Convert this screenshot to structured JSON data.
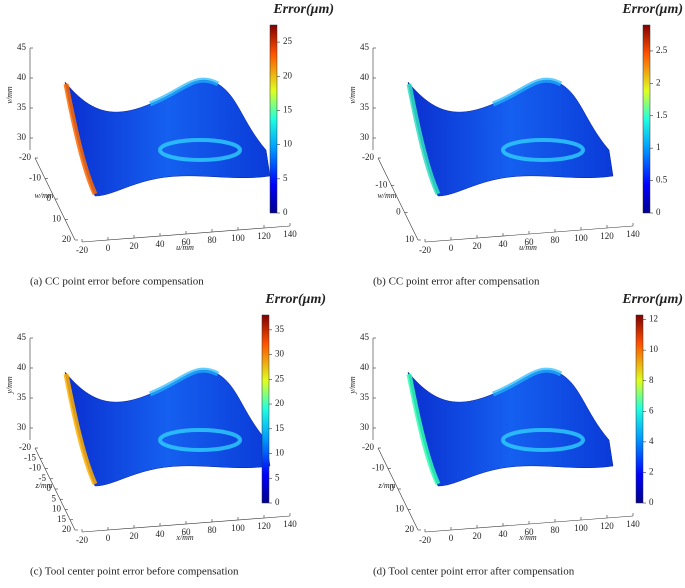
{
  "panels": [
    {
      "caption": "(a)  CC point error before compensation",
      "colorbar": {
        "title": "Error(μm)",
        "lim": [
          0,
          27.5
        ],
        "ticks": [
          0,
          5,
          10,
          15,
          20,
          25
        ]
      },
      "axes": {
        "vertical": {
          "label": "v/mm",
          "lim": [
            30,
            45
          ],
          "ticks": [
            45,
            40,
            35,
            30
          ]
        },
        "depth": {
          "label": "w/mm",
          "lim": [
            -20,
            20
          ],
          "ticks": [
            -20,
            -10,
            0,
            10,
            20
          ]
        },
        "horizontal": {
          "label": "u/mm",
          "lim": [
            -20,
            140
          ],
          "ticks": [
            -20,
            0,
            20,
            40,
            60,
            80,
            100,
            120,
            140
          ]
        }
      }
    },
    {
      "caption": "(b) CC point error after compensation",
      "colorbar": {
        "title": "Error(μm)",
        "lim": [
          0,
          2.9
        ],
        "ticks": [
          0,
          0.5,
          1,
          1.5,
          2,
          2.5
        ]
      },
      "axes": {
        "vertical": {
          "label": "v/mm",
          "lim": [
            30,
            45
          ],
          "ticks": [
            45,
            40,
            35,
            30
          ]
        },
        "depth": {
          "label": "w/mm",
          "lim": [
            -20,
            10
          ],
          "ticks": [
            -20,
            -10,
            0,
            10
          ]
        },
        "horizontal": {
          "label": "u/mm",
          "lim": [
            -20,
            140
          ],
          "ticks": [
            -20,
            0,
            20,
            40,
            60,
            80,
            100,
            120,
            140
          ]
        }
      }
    },
    {
      "caption": "(c) Tool center point error before compensation",
      "colorbar": {
        "title": "Error(μm)",
        "lim": [
          0,
          38
        ],
        "ticks": [
          0,
          5,
          10,
          15,
          20,
          25,
          30,
          35
        ]
      },
      "axes": {
        "vertical": {
          "label": "y/mm",
          "lim": [
            30,
            45
          ],
          "ticks": [
            45,
            40,
            35,
            30
          ]
        },
        "depth": {
          "label": "z/mm",
          "lim": [
            -20,
            20
          ],
          "ticks": [
            -20,
            -15,
            -10,
            -5,
            0,
            5,
            10,
            15,
            20
          ]
        },
        "horizontal": {
          "label": "x/mm",
          "lim": [
            -20,
            140
          ],
          "ticks": [
            -20,
            0,
            20,
            40,
            60,
            80,
            100,
            120,
            140
          ]
        }
      }
    },
    {
      "caption": "(d) Tool center point error after compensation",
      "colorbar": {
        "title": "Error(μm)",
        "lim": [
          0,
          12.3
        ],
        "ticks": [
          0,
          2,
          4,
          6,
          8,
          10,
          12
        ]
      },
      "axes": {
        "vertical": {
          "label": "y/mm",
          "lim": [
            30,
            45
          ],
          "ticks": [
            45,
            40,
            35,
            30
          ]
        },
        "depth": {
          "label": "z/mm",
          "lim": [
            -20,
            20
          ],
          "ticks": [
            -20,
            -10,
            0,
            10,
            20
          ]
        },
        "horizontal": {
          "label": "x/mm",
          "lim": [
            -20,
            140
          ],
          "ticks": [
            -20,
            0,
            20,
            40,
            60,
            80,
            100,
            120,
            140
          ]
        }
      }
    }
  ]
}
